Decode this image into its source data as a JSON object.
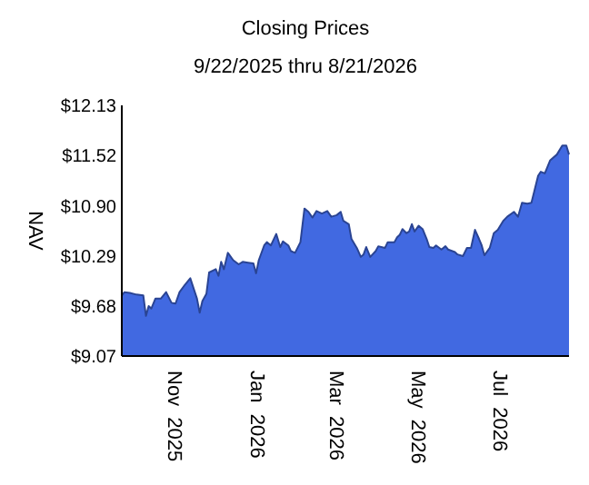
{
  "chart_data": {
    "type": "area",
    "title": "Closing Prices",
    "subtitle": "9/22/2025 thru 8/21/2026",
    "ylabel": "NAV",
    "xlim": [
      "2025-09-22",
      "2026-08-21"
    ],
    "xticks": [
      {
        "value": "2025-11-01",
        "label": "Nov  2025"
      },
      {
        "value": "2026-01-01",
        "label": "Jan  2026"
      },
      {
        "value": "2026-03-01",
        "label": "Mar  2026"
      },
      {
        "value": "2026-05-01",
        "label": "May  2026"
      },
      {
        "value": "2026-07-01",
        "label": "Jul  2026"
      }
    ],
    "ylim": [
      9.07,
      12.13
    ],
    "yticks": [
      {
        "value": 9.07,
        "label": "$9.07"
      },
      {
        "value": 9.68,
        "label": "$9.68"
      },
      {
        "value": 10.29,
        "label": "$10.29"
      },
      {
        "value": 10.9,
        "label": "$10.90"
      },
      {
        "value": 11.52,
        "label": "$11.52"
      },
      {
        "value": 12.13,
        "label": "$12.13"
      }
    ],
    "grid": false,
    "series": [
      {
        "color": "#4169e1",
        "x": [
          "2025-09-22",
          "2025-09-24",
          "2025-09-28",
          "2025-10-03",
          "2025-10-08",
          "2025-10-10",
          "2025-10-12",
          "2025-10-14",
          "2025-10-17",
          "2025-10-21",
          "2025-10-25",
          "2025-10-29",
          "2025-11-01",
          "2025-11-04",
          "2025-11-08",
          "2025-11-12",
          "2025-11-15",
          "2025-11-17",
          "2025-11-19",
          "2025-11-21",
          "2025-11-24",
          "2025-11-26",
          "2025-12-01",
          "2025-12-03",
          "2025-12-05",
          "2025-12-07",
          "2025-12-10",
          "2025-12-14",
          "2025-12-18",
          "2025-12-21",
          "2025-12-25",
          "2025-12-29",
          "2025-12-31",
          "2026-01-02",
          "2026-01-06",
          "2026-01-08",
          "2026-01-11",
          "2026-01-15",
          "2026-01-18",
          "2026-01-20",
          "2026-01-24",
          "2026-01-26",
          "2026-01-29",
          "2026-02-02",
          "2026-02-05",
          "2026-02-08",
          "2026-02-11",
          "2026-02-14",
          "2026-02-18",
          "2026-02-22",
          "2026-02-25",
          "2026-03-01",
          "2026-03-04",
          "2026-03-06",
          "2026-03-10",
          "2026-03-12",
          "2026-03-16",
          "2026-03-19",
          "2026-03-21",
          "2026-03-23",
          "2026-03-26",
          "2026-03-30",
          "2026-04-01",
          "2026-04-06",
          "2026-04-08",
          "2026-04-13",
          "2026-04-15",
          "2026-04-17",
          "2026-04-19",
          "2026-04-22",
          "2026-04-24",
          "2026-04-26",
          "2026-04-28",
          "2026-05-01",
          "2026-05-04",
          "2026-05-07",
          "2026-05-09",
          "2026-05-12",
          "2026-05-14",
          "2026-05-18",
          "2026-05-21",
          "2026-05-23",
          "2026-05-28",
          "2026-05-30",
          "2026-06-03",
          "2026-06-06",
          "2026-06-09",
          "2026-06-12",
          "2026-06-15",
          "2026-06-17",
          "2026-06-19",
          "2026-06-23",
          "2026-06-26",
          "2026-06-29",
          "2026-07-03",
          "2026-07-06",
          "2026-07-11",
          "2026-07-14",
          "2026-07-17",
          "2026-07-21",
          "2026-07-24",
          "2026-07-26",
          "2026-07-29",
          "2026-07-31",
          "2026-08-03",
          "2026-08-07",
          "2026-08-12",
          "2026-08-16",
          "2026-08-19",
          "2026-08-21"
        ],
        "values": [
          9.81,
          9.85,
          9.84,
          9.82,
          9.81,
          9.56,
          9.68,
          9.65,
          9.77,
          9.77,
          9.85,
          9.72,
          9.71,
          9.85,
          9.94,
          10.02,
          9.87,
          9.77,
          9.6,
          9.74,
          9.83,
          10.09,
          10.13,
          10.05,
          10.22,
          10.13,
          10.33,
          10.24,
          10.19,
          10.22,
          10.21,
          10.2,
          10.08,
          10.24,
          10.42,
          10.46,
          10.42,
          10.56,
          10.4,
          10.47,
          10.42,
          10.35,
          10.33,
          10.46,
          10.87,
          10.83,
          10.76,
          10.84,
          10.81,
          10.84,
          10.77,
          10.79,
          10.83,
          10.72,
          10.68,
          10.5,
          10.39,
          10.28,
          10.31,
          10.4,
          10.28,
          10.35,
          10.41,
          10.39,
          10.46,
          10.46,
          10.52,
          10.55,
          10.62,
          10.57,
          10.59,
          10.68,
          10.59,
          10.66,
          10.62,
          10.5,
          10.4,
          10.39,
          10.42,
          10.37,
          10.41,
          10.37,
          10.34,
          10.31,
          10.29,
          10.39,
          10.39,
          10.61,
          10.5,
          10.42,
          10.3,
          10.39,
          10.57,
          10.61,
          10.72,
          10.77,
          10.83,
          10.77,
          10.94,
          10.93,
          10.94,
          11.07,
          11.27,
          11.32,
          11.3,
          11.46,
          11.53,
          11.64,
          11.64,
          11.53
        ]
      }
    ]
  }
}
